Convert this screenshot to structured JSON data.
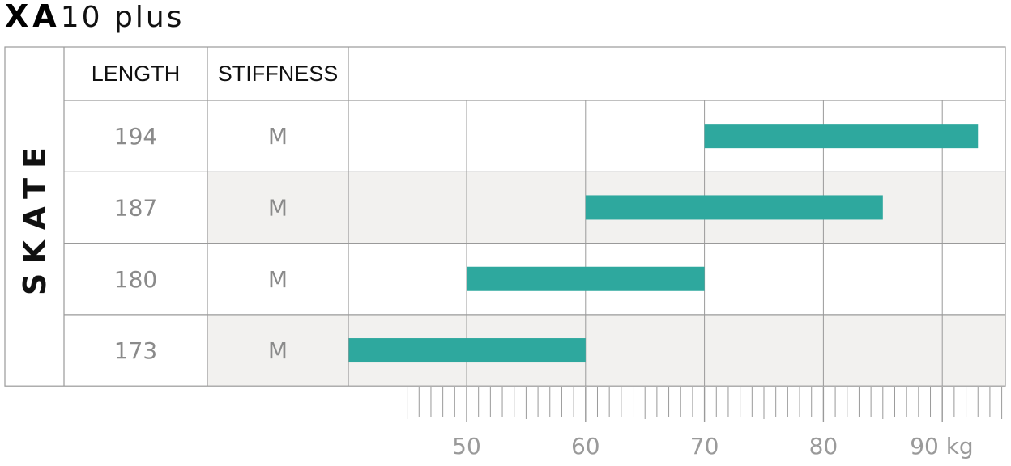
{
  "title": {
    "bold": "XA",
    "rest": "10 plus"
  },
  "side_label": "SKATE",
  "headers": {
    "length": "LENGTH",
    "stiffness": "STIFFNESS"
  },
  "rows": [
    {
      "length": "194",
      "stiffness": "M"
    },
    {
      "length": "187",
      "stiffness": "M"
    },
    {
      "length": "180",
      "stiffness": "M"
    },
    {
      "length": "173",
      "stiffness": "M"
    }
  ],
  "colors": {
    "bar": "#2ea89e",
    "row_shade": "#f2f1ef",
    "grid": "#9a9a9a"
  },
  "chart_data": {
    "type": "bar",
    "orientation": "horizontal-range",
    "categories": [
      "194",
      "187",
      "180",
      "173"
    ],
    "ranges": [
      [
        70,
        93
      ],
      [
        60,
        85
      ],
      [
        50,
        70
      ],
      [
        40,
        60
      ]
    ],
    "x_ticks": [
      "50",
      "60",
      "70",
      "80",
      "90 kg"
    ],
    "x_tick_values": [
      50,
      60,
      70,
      80,
      90
    ],
    "xlim": [
      40,
      95
    ],
    "minor_tick_from": 45,
    "grid": true
  }
}
